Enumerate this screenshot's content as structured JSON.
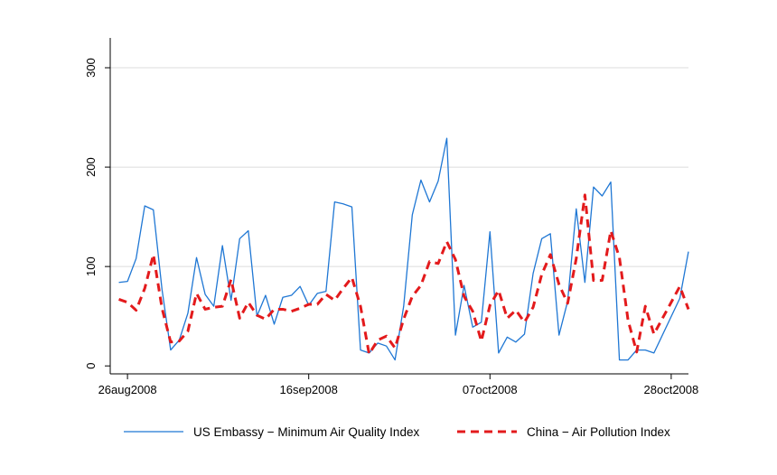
{
  "chart_data": {
    "type": "line",
    "title": "",
    "xlabel": "",
    "ylabel": "",
    "x_range": [
      "2008-08-24",
      "2008-10-30"
    ],
    "ylim": [
      -8,
      330
    ],
    "y_ticks": [
      0,
      100,
      200,
      300
    ],
    "x_ticks": [
      {
        "date": "2008-08-26",
        "label": "26aug2008"
      },
      {
        "date": "2008-09-16",
        "label": "16sep2008"
      },
      {
        "date": "2008-10-07",
        "label": "07oct2008"
      },
      {
        "date": "2008-10-28",
        "label": "28oct2008"
      }
    ],
    "grid": "horizontal",
    "legend_position": "bottom",
    "series": [
      {
        "name": "US Embassy − Minimum Air Quality Index",
        "color": "#1f77d4",
        "style": "solid",
        "points": [
          [
            "2008-08-25",
            84
          ],
          [
            "2008-08-26",
            85
          ],
          [
            "2008-08-27",
            108
          ],
          [
            "2008-08-28",
            161
          ],
          [
            "2008-08-29",
            157
          ],
          [
            "2008-08-30",
            77
          ],
          [
            "2008-08-31",
            16
          ],
          [
            "2008-09-01",
            26
          ],
          [
            "2008-09-02",
            53
          ],
          [
            "2008-09-03",
            109
          ],
          [
            "2008-09-04",
            72
          ],
          [
            "2008-09-05",
            60
          ],
          [
            "2008-09-06",
            121
          ],
          [
            "2008-09-07",
            66
          ],
          [
            "2008-09-08",
            128
          ],
          [
            "2008-09-09",
            136
          ],
          [
            "2008-09-10",
            50
          ],
          [
            "2008-09-11",
            71
          ],
          [
            "2008-09-12",
            42
          ],
          [
            "2008-09-13",
            69
          ],
          [
            "2008-09-14",
            71
          ],
          [
            "2008-09-15",
            80
          ],
          [
            "2008-09-16",
            61
          ],
          [
            "2008-09-17",
            73
          ],
          [
            "2008-09-18",
            75
          ],
          [
            "2008-09-19",
            165
          ],
          [
            "2008-09-20",
            163
          ],
          [
            "2008-09-21",
            160
          ],
          [
            "2008-09-22",
            16
          ],
          [
            "2008-09-23",
            13
          ],
          [
            "2008-09-24",
            23
          ],
          [
            "2008-09-25",
            20
          ],
          [
            "2008-09-26",
            6
          ],
          [
            "2008-09-27",
            60
          ],
          [
            "2008-09-28",
            152
          ],
          [
            "2008-09-29",
            187
          ],
          [
            "2008-09-30",
            165
          ],
          [
            "2008-10-01",
            186
          ],
          [
            "2008-10-02",
            229
          ],
          [
            "2008-10-03",
            31
          ],
          [
            "2008-10-04",
            81
          ],
          [
            "2008-10-05",
            39
          ],
          [
            "2008-10-06",
            44
          ],
          [
            "2008-10-07",
            135
          ],
          [
            "2008-10-08",
            13
          ],
          [
            "2008-10-09",
            29
          ],
          [
            "2008-10-10",
            24
          ],
          [
            "2008-10-11",
            32
          ],
          [
            "2008-10-12",
            93
          ],
          [
            "2008-10-13",
            128
          ],
          [
            "2008-10-14",
            133
          ],
          [
            "2008-10-15",
            31
          ],
          [
            "2008-10-16",
            65
          ],
          [
            "2008-10-17",
            158
          ],
          [
            "2008-10-18",
            84
          ],
          [
            "2008-10-19",
            180
          ],
          [
            "2008-10-20",
            171
          ],
          [
            "2008-10-21",
            185
          ],
          [
            "2008-10-22",
            6
          ],
          [
            "2008-10-23",
            6
          ],
          [
            "2008-10-24",
            16
          ],
          [
            "2008-10-25",
            16
          ],
          [
            "2008-10-26",
            13
          ],
          [
            "2008-10-29",
            68
          ],
          [
            "2008-10-30",
            115
          ]
        ]
      },
      {
        "name": "China − Air Pollution Index",
        "color": "#e31a1c",
        "style": "dashed",
        "points": [
          [
            "2008-08-25",
            67
          ],
          [
            "2008-08-26",
            64
          ],
          [
            "2008-08-27",
            56
          ],
          [
            "2008-08-28",
            78
          ],
          [
            "2008-08-29",
            112
          ],
          [
            "2008-08-30",
            58
          ],
          [
            "2008-08-31",
            24
          ],
          [
            "2008-09-01",
            25
          ],
          [
            "2008-09-02",
            35
          ],
          [
            "2008-09-03",
            73
          ],
          [
            "2008-09-04",
            57
          ],
          [
            "2008-09-05",
            59
          ],
          [
            "2008-09-06",
            60
          ],
          [
            "2008-09-07",
            87
          ],
          [
            "2008-09-08",
            48
          ],
          [
            "2008-09-09",
            64
          ],
          [
            "2008-09-10",
            51
          ],
          [
            "2008-09-11",
            47
          ],
          [
            "2008-09-12",
            57
          ],
          [
            "2008-09-13",
            57
          ],
          [
            "2008-09-14",
            55
          ],
          [
            "2008-09-15",
            58
          ],
          [
            "2008-09-16",
            62
          ],
          [
            "2008-09-17",
            62
          ],
          [
            "2008-09-18",
            72
          ],
          [
            "2008-09-19",
            66
          ],
          [
            "2008-09-20",
            78
          ],
          [
            "2008-09-21",
            89
          ],
          [
            "2008-09-22",
            60
          ],
          [
            "2008-09-23",
            12
          ],
          [
            "2008-09-24",
            26
          ],
          [
            "2008-09-25",
            30
          ],
          [
            "2008-09-26",
            18
          ],
          [
            "2008-09-27",
            47
          ],
          [
            "2008-09-28",
            70
          ],
          [
            "2008-09-29",
            81
          ],
          [
            "2008-09-30",
            105
          ],
          [
            "2008-10-01",
            103
          ],
          [
            "2008-10-02",
            125
          ],
          [
            "2008-10-03",
            107
          ],
          [
            "2008-10-04",
            70
          ],
          [
            "2008-10-05",
            55
          ],
          [
            "2008-10-06",
            25
          ],
          [
            "2008-10-07",
            61
          ],
          [
            "2008-10-08",
            76
          ],
          [
            "2008-10-09",
            48
          ],
          [
            "2008-10-10",
            56
          ],
          [
            "2008-10-11",
            44
          ],
          [
            "2008-10-12",
            59
          ],
          [
            "2008-10-13",
            92
          ],
          [
            "2008-10-14",
            112
          ],
          [
            "2008-10-15",
            82
          ],
          [
            "2008-10-16",
            63
          ],
          [
            "2008-10-17",
            108
          ],
          [
            "2008-10-18",
            172
          ],
          [
            "2008-10-19",
            86
          ],
          [
            "2008-10-20",
            86
          ],
          [
            "2008-10-21",
            136
          ],
          [
            "2008-10-22",
            109
          ],
          [
            "2008-10-23",
            46
          ],
          [
            "2008-10-24",
            14
          ],
          [
            "2008-10-25",
            60
          ],
          [
            "2008-10-26",
            32
          ],
          [
            "2008-10-30",
            57
          ],
          [
            "2008-10-29",
            80
          ]
        ]
      }
    ]
  }
}
